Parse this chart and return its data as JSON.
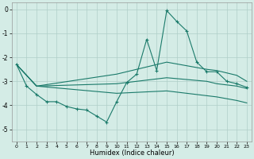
{
  "xlabel": "Humidex (Indice chaleur)",
  "background_color": "#d4ece6",
  "grid_color": "#b0cfc8",
  "line_color": "#1a7a6a",
  "xlim": [
    -0.5,
    23.5
  ],
  "ylim": [
    -5.5,
    0.3
  ],
  "yticks": [
    0,
    -1,
    -2,
    -3,
    -4,
    -5
  ],
  "xticks": [
    0,
    1,
    2,
    3,
    4,
    5,
    6,
    7,
    8,
    9,
    10,
    11,
    12,
    13,
    14,
    15,
    16,
    17,
    18,
    19,
    20,
    21,
    22,
    23
  ],
  "line_main": {
    "x": [
      0,
      1,
      2,
      3,
      4,
      5,
      6,
      7,
      8,
      9,
      10,
      11,
      12,
      13,
      14,
      15,
      16,
      17,
      18,
      19,
      20,
      21,
      22,
      23
    ],
    "y": [
      -2.3,
      -3.2,
      -3.55,
      -3.85,
      -3.85,
      -4.05,
      -4.15,
      -4.2,
      -4.45,
      -4.7,
      -3.85,
      -3.05,
      -2.7,
      -1.25,
      -2.55,
      -0.05,
      -0.5,
      -0.9,
      -2.2,
      -2.6,
      -2.6,
      -3.0,
      -3.1,
      -3.25
    ]
  },
  "line_upper": {
    "x": [
      0,
      2,
      10,
      15,
      19,
      20,
      22,
      23
    ],
    "y": [
      -2.3,
      -3.2,
      -2.7,
      -2.2,
      -2.5,
      -2.55,
      -2.75,
      -3.0
    ]
  },
  "line_mid": {
    "x": [
      0,
      2,
      10,
      15,
      19,
      20,
      22,
      23
    ],
    "y": [
      -2.3,
      -3.2,
      -3.1,
      -2.85,
      -3.0,
      -3.1,
      -3.2,
      -3.3
    ]
  },
  "line_lower": {
    "x": [
      0,
      2,
      10,
      15,
      19,
      20,
      22,
      23
    ],
    "y": [
      -2.3,
      -3.2,
      -3.5,
      -3.4,
      -3.6,
      -3.65,
      -3.8,
      -3.9
    ]
  }
}
